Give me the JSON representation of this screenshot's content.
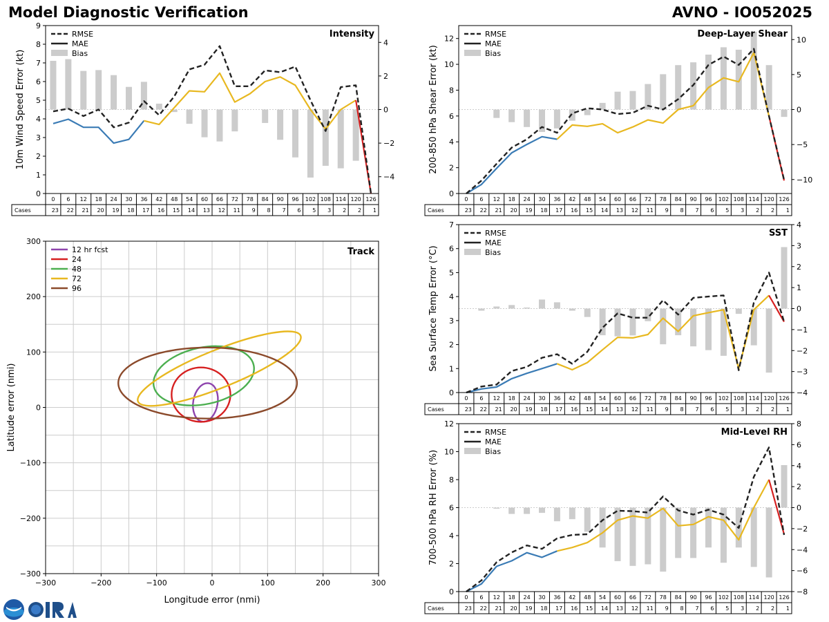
{
  "header": {
    "title": "Model Diagnostic Verification",
    "storm": "AVNO - IO052025"
  },
  "logos": {
    "noaa": "NOAA",
    "cira": "CIRA"
  },
  "colors": {
    "rmse": "#222222",
    "mae_early": "#3a7bb5",
    "mae_mid": "#e8b820",
    "mae_late": "#d62020",
    "bias": "#cccccc",
    "track_12": "#8e44ad",
    "track_24": "#d62020",
    "track_48": "#4caf50",
    "track_72": "#e8b820",
    "track_96": "#8b4a2b"
  },
  "table": {
    "lead_times": [
      "0",
      "6",
      "12",
      "18",
      "24",
      "30",
      "36",
      "42",
      "48",
      "54",
      "60",
      "66",
      "72",
      "78",
      "84",
      "90",
      "96",
      "102",
      "108",
      "114",
      "120",
      "126"
    ],
    "cases_label": "Cases",
    "cases": [
      23,
      22,
      21,
      20,
      19,
      18,
      17,
      16,
      15,
      14,
      13,
      12,
      11,
      9,
      8,
      7,
      6,
      5,
      3,
      2,
      2,
      1
    ]
  },
  "chart_data": [
    {
      "id": "intensity",
      "type": "line",
      "title": "Intensity",
      "ylabel": "10m Wind Speed Error (kt)",
      "ylim": [
        0,
        9
      ],
      "yticks": [
        0,
        1,
        2,
        3,
        4,
        5,
        6,
        7,
        8,
        9
      ],
      "y2lim": [
        -5,
        5
      ],
      "y2ticks": [
        -4,
        -2,
        0,
        2,
        4
      ],
      "legend": [
        "RMSE",
        "MAE",
        "Bias"
      ],
      "rmse": [
        4.4,
        4.55,
        4.15,
        4.5,
        3.55,
        3.8,
        4.95,
        4.2,
        5.2,
        6.65,
        6.9,
        7.9,
        5.75,
        5.75,
        6.6,
        6.5,
        6.8,
        5,
        3.35,
        5.7,
        5.8,
        0
      ],
      "mae": [
        3.75,
        3.98,
        3.55,
        3.55,
        2.7,
        2.9,
        3.9,
        3.7,
        4.6,
        5.5,
        5.45,
        6.45,
        4.9,
        5.35,
        6,
        6.25,
        5.8,
        4.5,
        3.45,
        4.5,
        5,
        0
      ],
      "bias": [
        2.9,
        3,
        2.3,
        2.35,
        2.05,
        1.35,
        1.65,
        0.35,
        -0.15,
        -0.85,
        -1.65,
        -1.9,
        -1.3,
        0,
        -0.8,
        -1.8,
        -2.85,
        -4.05,
        -3.35,
        -3.5,
        -3.05,
        0
      ]
    },
    {
      "id": "shear",
      "type": "line",
      "title": "Deep-Layer Shear",
      "ylabel": "200-850 hPa Shear Error (kt)",
      "ylim": [
        0,
        13
      ],
      "yticks": [
        0,
        2,
        4,
        6,
        8,
        10,
        12
      ],
      "y2lim": [
        -12,
        12
      ],
      "y2ticks": [
        -10,
        -5,
        0,
        5,
        10
      ],
      "legend": [
        "RMSE",
        "MAE",
        "Bias"
      ],
      "rmse": [
        0,
        1,
        2.3,
        3.55,
        4.2,
        5.15,
        4.7,
        6.2,
        6.6,
        6.5,
        6.15,
        6.25,
        6.8,
        6.5,
        7.3,
        8.4,
        9.95,
        10.6,
        9.95,
        11.2,
        6,
        1.05
      ],
      "mae": [
        0,
        0.7,
        1.95,
        3.15,
        3.8,
        4.4,
        4.2,
        5.3,
        5.2,
        5.4,
        4.7,
        5.15,
        5.7,
        5.45,
        6.5,
        6.8,
        8.2,
        8.95,
        8.65,
        10.9,
        6,
        1
      ],
      "bias": [
        0,
        0,
        -1.2,
        -1.8,
        -2.5,
        -3.2,
        -2.7,
        -1.6,
        -0.8,
        0.95,
        2.55,
        2.65,
        3.65,
        5.05,
        6.35,
        6.75,
        7.85,
        8.9,
        8.55,
        11.1,
        6.35,
        -1.05
      ]
    },
    {
      "id": "sst",
      "type": "line",
      "title": "SST",
      "ylabel": "Sea Surface Temp Error (°C)",
      "ylim": [
        0,
        7
      ],
      "yticks": [
        0,
        1,
        2,
        3,
        4,
        5,
        6,
        7
      ],
      "y2lim": [
        -4,
        4
      ],
      "y2ticks": [
        -4,
        -3,
        -2,
        -1,
        0,
        1,
        2,
        3,
        4
      ],
      "legend": [
        "RMSE",
        "MAE",
        "Bias"
      ],
      "rmse": [
        0,
        0.25,
        0.33,
        0.9,
        1.07,
        1.45,
        1.6,
        1.2,
        1.7,
        2.7,
        3.3,
        3.12,
        3.12,
        3.85,
        3.25,
        3.95,
        4,
        4.05,
        0.93,
        3.75,
        5,
        2.95
      ],
      "mae": [
        0,
        0.15,
        0.23,
        0.58,
        0.8,
        1,
        1.2,
        0.95,
        1.25,
        1.78,
        2.3,
        2.28,
        2.42,
        3.1,
        2.55,
        3.2,
        3.33,
        3.45,
        1,
        3.45,
        4.05,
        2.95
      ],
      "bias": [
        0,
        -0.1,
        0.1,
        0.17,
        0.05,
        0.43,
        0.3,
        -0.1,
        -0.4,
        -1.27,
        -1.32,
        -1.28,
        -0.6,
        -1.7,
        -1.27,
        -1.8,
        -1.98,
        -2.25,
        -0.25,
        -1.75,
        -3.05,
        2.93
      ]
    },
    {
      "id": "rh",
      "type": "line",
      "title": "Mid-Level RH",
      "ylabel": "700-500 hPa RH Error (%)",
      "ylim": [
        0,
        12
      ],
      "yticks": [
        0,
        2,
        4,
        6,
        8,
        10,
        12
      ],
      "y2lim": [
        -8,
        8
      ],
      "y2ticks": [
        -8,
        -6,
        -4,
        -2,
        0,
        2,
        4,
        6,
        8
      ],
      "legend": [
        "RMSE",
        "MAE",
        "Bias"
      ],
      "rmse": [
        0,
        0.8,
        2.1,
        2.8,
        3.3,
        3.05,
        3.8,
        4.05,
        4.1,
        5.1,
        5.78,
        5.75,
        5.65,
        6.8,
        5.8,
        5.5,
        5.85,
        5.5,
        4.55,
        8.2,
        10.3,
        4.05
      ],
      "mae": [
        0,
        0.55,
        1.8,
        2.2,
        2.78,
        2.45,
        2.9,
        3.15,
        3.5,
        4.2,
        5.1,
        5.4,
        5.25,
        5.95,
        4.7,
        4.8,
        5.35,
        5.1,
        3.7,
        6,
        8,
        4.1
      ],
      "bias": [
        0,
        0,
        -0.1,
        -0.6,
        -0.6,
        -0.5,
        -1.3,
        -1.1,
        -2.3,
        -3.8,
        -5.1,
        -5.55,
        -5.4,
        -6.1,
        -4.8,
        -4.8,
        -3.8,
        -5.25,
        -3.8,
        -5.65,
        -6.65,
        4.05
      ]
    },
    {
      "id": "track",
      "type": "scatter",
      "title": "Track",
      "xlabel": "Longitude error (nmi)",
      "ylabel": "Latitude error (nmi)",
      "xlim": [
        -300,
        300
      ],
      "ylim": [
        -300,
        300
      ],
      "xticks": [
        -300,
        -200,
        -100,
        0,
        100,
        200,
        300
      ],
      "yticks": [
        -300,
        -200,
        -100,
        0,
        100,
        200,
        300
      ],
      "legend": [
        "12 hr fcst",
        "24",
        "48",
        "72",
        "96"
      ],
      "ellipses": [
        {
          "label": "12 hr fcst",
          "cx": -12,
          "cy": 9,
          "rx": 22,
          "ry": 35,
          "angle": 10
        },
        {
          "label": "24",
          "cx": -20,
          "cy": 23,
          "rx": 53,
          "ry": 49,
          "angle": 0
        },
        {
          "label": "48",
          "cx": -15,
          "cy": 57,
          "rx": 92,
          "ry": 51,
          "angle": -12
        },
        {
          "label": "72",
          "cx": 13,
          "cy": 70,
          "rx": 158,
          "ry": 34,
          "angle": -22
        },
        {
          "label": "96",
          "cx": -8,
          "cy": 44,
          "rx": 161,
          "ry": 64,
          "angle": 0
        }
      ]
    }
  ]
}
